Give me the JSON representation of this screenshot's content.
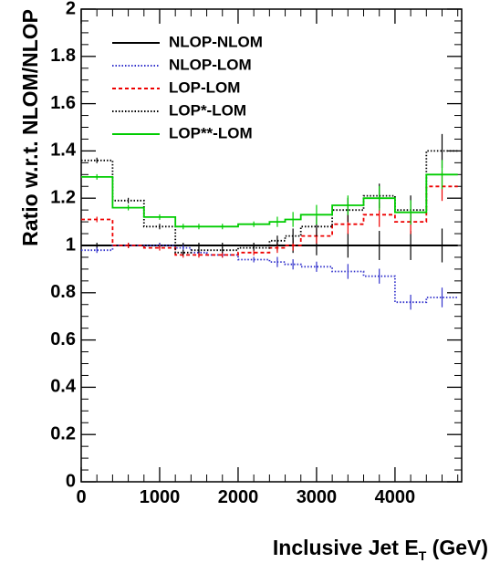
{
  "chart_data": {
    "type": "line",
    "xlabel_main": "Inclusive Jet E",
    "xlabel_sub": "T",
    "xlabel_unit": " (GeV)",
    "ylabel": "Ratio w.r.t. NLOM/NLOP",
    "xlim": [
      0,
      4850
    ],
    "ylim": [
      0,
      2
    ],
    "x_ticks": [
      0,
      1000,
      2000,
      3000,
      4000
    ],
    "y_ticks": [
      0,
      0.2,
      0.4,
      0.6,
      0.8,
      1,
      1.2,
      1.4,
      1.6,
      1.8,
      2
    ],
    "y_tick_labels": [
      "0",
      "0.2",
      "0.4",
      "0.6",
      "0.8",
      "1",
      "1.2",
      "1.4",
      "1.6",
      "1.8",
      "2"
    ],
    "bin_edges": [
      0,
      400,
      800,
      1200,
      1400,
      1600,
      2000,
      2400,
      2600,
      2800,
      3200,
      3600,
      4000,
      4400,
      4800
    ],
    "legend_position": "top-left",
    "series": [
      {
        "name": "NLOP-NLOM",
        "color": "#000000",
        "style": "solid",
        "values": [
          1,
          1,
          1,
          1,
          1,
          1,
          1,
          1,
          1,
          1,
          1,
          1,
          1,
          1
        ],
        "errors": [
          0,
          0,
          0,
          0,
          0,
          0,
          0,
          0.01,
          0.02,
          0.03,
          0.04,
          0.05,
          0.05,
          0.06
        ]
      },
      {
        "name": "NLOP-LOM",
        "color": "#3333cc",
        "style": "dotted",
        "values": [
          0.98,
          1.0,
          1.0,
          0.99,
          0.97,
          0.96,
          0.94,
          0.93,
          0.92,
          0.91,
          0.89,
          0.87,
          0.76,
          0.78
        ],
        "errors": [
          0,
          0,
          0,
          0,
          0,
          0,
          0,
          0.01,
          0.01,
          0.01,
          0.02,
          0.02,
          0.02,
          0.03
        ]
      },
      {
        "name": "LOP-LOM",
        "color": "#ee0000",
        "style": "dashed",
        "values": [
          1.11,
          1.0,
          0.99,
          0.96,
          0.96,
          0.96,
          0.97,
          0.99,
          1.0,
          1.04,
          1.09,
          1.13,
          1.1,
          1.25
        ],
        "errors": [
          0,
          0,
          0,
          0,
          0,
          0,
          0,
          0.01,
          0.01,
          0.02,
          0.03,
          0.04,
          0.04,
          0.05
        ]
      },
      {
        "name": "LOP*-LOM",
        "color": "#000000",
        "style": "dotted",
        "values": [
          1.36,
          1.19,
          1.08,
          0.97,
          0.98,
          0.98,
          0.99,
          1.02,
          1.04,
          1.08,
          1.15,
          1.21,
          1.15,
          1.4
        ],
        "errors": [
          0,
          0,
          0,
          0,
          0,
          0,
          0,
          0.01,
          0.02,
          0.03,
          0.04,
          0.04,
          0.05,
          0.06
        ]
      },
      {
        "name": "LOP**-LOM",
        "color": "#00cc00",
        "style": "solid",
        "values": [
          1.29,
          1.16,
          1.12,
          1.08,
          1.08,
          1.08,
          1.09,
          1.1,
          1.11,
          1.13,
          1.17,
          1.2,
          1.14,
          1.3
        ],
        "errors": [
          0,
          0,
          0,
          0,
          0,
          0,
          0,
          0.01,
          0.02,
          0.03,
          0.03,
          0.04,
          0.04,
          0.05
        ]
      }
    ]
  }
}
